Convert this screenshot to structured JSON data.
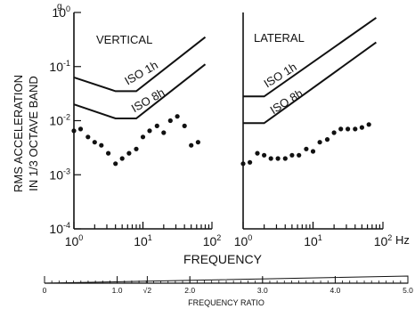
{
  "figure": {
    "y_unit_label": "g",
    "y_axis_label_line1": "RMS ACCELERATION",
    "y_axis_label_line2": "IN 1/3 OCTAVE BAND",
    "x_axis_label": "FREQUENCY",
    "x_unit_label": "Hz",
    "ratio_axis_label": "FREQUENCY RATIO",
    "ratio_ticks": [
      {
        "value": 0,
        "label": "0"
      },
      {
        "value": 1.0,
        "label": "1.0"
      },
      {
        "value": 1.414,
        "label": "√2"
      },
      {
        "value": 2.0,
        "label": "2.0"
      },
      {
        "value": 3.0,
        "label": "3.0"
      },
      {
        "value": 4.0,
        "label": "4.0"
      },
      {
        "value": 5.0,
        "label": "5.0"
      }
    ]
  },
  "chart_data": [
    {
      "type": "scatter",
      "title": "VERTICAL",
      "xlabel": "FREQUENCY",
      "ylabel": "RMS ACCELERATION IN 1/3 OCTAVE BAND",
      "x_scale": "log",
      "y_scale": "log",
      "xlim": [
        1,
        100
      ],
      "ylim": [
        0.0001,
        1
      ],
      "y_ticks": [
        {
          "exp": "0",
          "value": 1
        },
        {
          "exp": "-1",
          "value": 0.1
        },
        {
          "exp": "-2",
          "value": 0.01
        },
        {
          "exp": "-3",
          "value": 0.001
        },
        {
          "exp": "-4",
          "value": 0.0001
        }
      ],
      "x_ticks": [
        {
          "exp": "0",
          "value": 1
        },
        {
          "exp": "1",
          "value": 10
        },
        {
          "exp": "2",
          "value": 100
        }
      ],
      "curves": [
        {
          "label": "ISO 1h",
          "x": [
            1,
            4,
            8,
            80
          ],
          "y": [
            0.063,
            0.035,
            0.035,
            0.35
          ]
        },
        {
          "label": "ISO 8h",
          "x": [
            1,
            4,
            8,
            80
          ],
          "y": [
            0.02,
            0.011,
            0.011,
            0.11
          ]
        }
      ],
      "points": {
        "x": [
          1.0,
          1.25,
          1.6,
          2.0,
          2.5,
          3.15,
          4.0,
          5.0,
          6.3,
          8.0,
          10,
          12.5,
          16,
          20,
          25,
          31.5,
          40,
          50,
          63
        ],
        "y": [
          0.0065,
          0.007,
          0.005,
          0.004,
          0.0035,
          0.0025,
          0.0016,
          0.002,
          0.0025,
          0.003,
          0.005,
          0.0065,
          0.008,
          0.006,
          0.01,
          0.012,
          0.008,
          0.0035,
          0.004
        ]
      }
    },
    {
      "type": "scatter",
      "title": "LATERAL",
      "xlabel": "FREQUENCY",
      "x_scale": "log",
      "y_scale": "log",
      "xlim": [
        1,
        100
      ],
      "ylim": [
        0.0001,
        1
      ],
      "x_ticks": [
        {
          "exp": "0",
          "value": 1
        },
        {
          "exp": "1",
          "value": 10
        },
        {
          "exp": "2",
          "value": 100
        }
      ],
      "curves": [
        {
          "label": "ISO 1h",
          "x": [
            1,
            2,
            80
          ],
          "y": [
            0.028,
            0.028,
            0.8
          ]
        },
        {
          "label": "ISO 8h",
          "x": [
            1,
            2,
            80
          ],
          "y": [
            0.009,
            0.009,
            0.28
          ]
        }
      ],
      "points": {
        "x": [
          1.0,
          1.25,
          1.6,
          2.0,
          2.5,
          3.15,
          4.0,
          5.0,
          6.3,
          8.0,
          10,
          12.5,
          16,
          20,
          25,
          31.5,
          40,
          50,
          63
        ],
        "y": [
          0.0016,
          0.0017,
          0.0025,
          0.0023,
          0.002,
          0.002,
          0.002,
          0.0023,
          0.0023,
          0.003,
          0.0027,
          0.004,
          0.0045,
          0.006,
          0.007,
          0.007,
          0.007,
          0.0075,
          0.0085
        ]
      }
    }
  ]
}
